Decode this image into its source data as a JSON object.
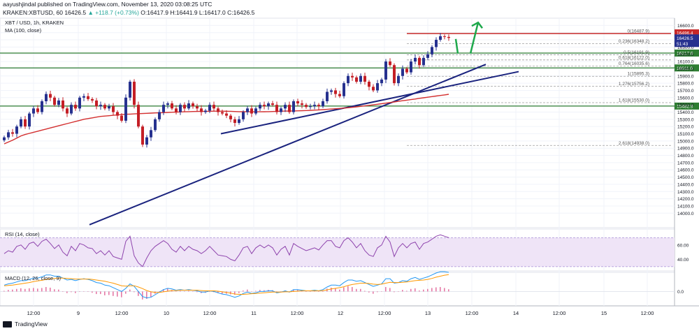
{
  "header": {
    "line1": "aayushjindal published on TradingView.com, November 13, 2020 03:08:25 UTC",
    "line2_prefix": "KRAKEN:XBTUSD, 60 16426.5",
    "line2_change": "▲ +118.7 (+0.73%)",
    "line2_ohlc": "O:16417.9 H:16441.9 L:16417.0 C:16426.5"
  },
  "legend": {
    "symbol": "XBT / USD, 1h, KRAKEN",
    "ma": "MA (100, close)",
    "rsi": "RSI (14, close)",
    "macd": "MACD (12, 26, close, 9)"
  },
  "brand": "TradingView",
  "price_badges": {
    "last": "16426.5",
    "countdown": "51:43",
    "top_level": "16496.4"
  },
  "levels": {
    "resistance": [
      "16217.0",
      "16011.0",
      "15482.9"
    ],
    "fib": [
      {
        "label": "0(16487.9)",
        "value": 16487.9
      },
      {
        "label": "0.236(16348.2)",
        "value": 16348.2
      },
      {
        "label": "0.5(16191.9)",
        "value": 16191.9
      },
      {
        "label": "0.618(16122.0)",
        "value": 16122.0
      },
      {
        "label": "0.764(16035.6)",
        "value": 16035.6
      },
      {
        "label": "1(15895.3)",
        "value": 15895.3
      },
      {
        "label": "1.276(15756.2)",
        "value": 15756.2
      },
      {
        "label": "1.618(15530.0)",
        "value": 15530.0
      },
      {
        "label": "2.618(14938.0)",
        "value": 14938.0
      }
    ]
  },
  "colors": {
    "bull": "#26318f",
    "bear": "#c41f26",
    "ma": "#d32f2f",
    "trendline": "#1a237e",
    "support": "#2e7d32",
    "fib_line": "#c62828",
    "fib_text": "#555555",
    "rsi_band": "#efe4f7",
    "rsi_line": "#8e44ad",
    "macd_line": "#2196f3",
    "signal_line": "#ff9800",
    "hist": "#e57aa6",
    "arrow": "#1ea84b"
  },
  "chart_data": {
    "type": "candlestick",
    "title": "XBT / USD, 1h, KRAKEN",
    "ylim": [
      13800,
      16700
    ],
    "y_ticks": [
      14000,
      14100,
      14200,
      14300,
      14400,
      14500,
      14600,
      14700,
      14800,
      14900,
      15000,
      15100,
      15200,
      15300,
      15400,
      15500,
      15600,
      15700,
      15800,
      15900,
      16000,
      16100,
      16200,
      16300,
      16400,
      16500,
      16600
    ],
    "y_tick_labels": [
      "14000.0",
      "14100.0",
      "14200.0",
      "14300.0",
      "14400.0",
      "14500.0",
      "14600.0",
      "14700.0",
      "14800.0",
      "14900.0",
      "15000.0",
      "15100.0",
      "15200.0",
      "15300.0",
      "15400.0",
      "15500.0",
      "15600.0",
      "15700.0",
      "15800.0",
      "15900.0",
      "16000.0",
      "16100.0",
      "16200.0",
      "16300.0",
      "16400.0",
      "16500.0",
      "16600.0"
    ],
    "x_ticks": [
      "12:00",
      "9",
      "12:00",
      "10",
      "12:00",
      "11",
      "12:00",
      "12",
      "12:00",
      "13",
      "12:00",
      "14",
      "12:00",
      "15",
      "12:00"
    ],
    "close": [
      15050,
      15120,
      15100,
      15200,
      15300,
      15200,
      15380,
      15450,
      15400,
      15550,
      15650,
      15600,
      15500,
      15560,
      15450,
      15380,
      15500,
      15450,
      15600,
      15620,
      15580,
      15560,
      15480,
      15500,
      15450,
      15480,
      15400,
      15350,
      15280,
      15600,
      15820,
      15500,
      15200,
      14950,
      15050,
      15150,
      15300,
      15400,
      15500,
      15520,
      15450,
      15400,
      15500,
      15450,
      15520,
      15480,
      15450,
      15400,
      15420,
      15500,
      15450,
      15400,
      15380,
      15350,
      15300,
      15250,
      15300,
      15400,
      15450,
      15380,
      15450,
      15500,
      15480,
      15520,
      15500,
      15400,
      15450,
      15500,
      15400,
      15550,
      15520,
      15500,
      15470,
      15480,
      15500,
      15480,
      15550,
      15680,
      15700,
      15650,
      15620,
      15800,
      15900,
      15880,
      15820,
      15900,
      15820,
      15750,
      15700,
      15800,
      15850,
      16100,
      16050,
      15800,
      15900,
      16000,
      15950,
      16100,
      16150,
      16050,
      16150,
      16200,
      16300,
      16400,
      16450,
      16440,
      16426.5
    ],
    "ma100": [
      14960,
      14985,
      15010,
      15040,
      15070,
      15090,
      15105,
      15120,
      15135,
      15150,
      15165,
      15180,
      15195,
      15210,
      15225,
      15240,
      15255,
      15270,
      15285,
      15300,
      15310,
      15320,
      15330,
      15340,
      15345,
      15350,
      15355,
      15360,
      15365,
      15370,
      15372,
      15375,
      15378,
      15380,
      15382,
      15385,
      15388,
      15390,
      15392,
      15395,
      15398,
      15400,
      15402,
      15404,
      15406,
      15408,
      15409,
      15410,
      15410,
      15411,
      15412,
      15412,
      15412,
      15411,
      15410,
      15408,
      15406,
      15405,
      15404,
      15404,
      15404,
      15404,
      15405,
      15406,
      15408,
      15410,
      15412,
      15413,
      15414,
      15415,
      15417,
      15419,
      15421,
      15424,
      15427,
      15430,
      15434,
      15438,
      15442,
      15446,
      15450,
      15455,
      15460,
      15466,
      15472,
      15479,
      15486,
      15493,
      15500,
      15508,
      15516,
      15524,
      15532,
      15540,
      15549,
      15557,
      15565,
      15573,
      15581,
      15590,
      15598,
      15606,
      15614,
      15622,
      15630,
      15638,
      15646
    ],
    "rsi": [
      48,
      52,
      50,
      58,
      60,
      54,
      62,
      64,
      58,
      65,
      68,
      62,
      55,
      60,
      50,
      45,
      58,
      52,
      62,
      60,
      56,
      55,
      48,
      52,
      46,
      52,
      44,
      42,
      40,
      65,
      72,
      45,
      35,
      30,
      42,
      52,
      58,
      62,
      66,
      62,
      54,
      50,
      58,
      52,
      58,
      54,
      52,
      48,
      52,
      58,
      52,
      46,
      45,
      44,
      40,
      38,
      46,
      56,
      58,
      48,
      56,
      60,
      56,
      60,
      56,
      46,
      54,
      58,
      46,
      62,
      58,
      55,
      52,
      54,
      56,
      53,
      60,
      66,
      66,
      58,
      56,
      66,
      70,
      64,
      56,
      62,
      52,
      46,
      44,
      56,
      60,
      72,
      64,
      44,
      56,
      62,
      56,
      62,
      64,
      54,
      62,
      64,
      68,
      72,
      74,
      72,
      70
    ],
    "rsi_ticks": [
      40,
      60
    ],
    "rsi_ylim": [
      24,
      82
    ],
    "macd_ticks": [
      0
    ],
    "macd_ylim": [
      -45,
      60
    ],
    "macd": [
      20,
      24,
      26,
      30,
      34,
      34,
      38,
      42,
      42,
      46,
      52,
      52,
      48,
      48,
      42,
      36,
      38,
      34,
      38,
      40,
      38,
      34,
      28,
      26,
      20,
      18,
      12,
      6,
      0,
      10,
      24,
      16,
      0,
      -16,
      -20,
      -18,
      -10,
      -2,
      6,
      10,
      8,
      4,
      6,
      4,
      6,
      4,
      2,
      -2,
      -2,
      2,
      0,
      -4,
      -8,
      -10,
      -14,
      -18,
      -14,
      -6,
      -2,
      -6,
      -4,
      0,
      0,
      2,
      2,
      -4,
      -2,
      2,
      -2,
      6,
      6,
      4,
      2,
      2,
      4,
      2,
      6,
      14,
      20,
      20,
      18,
      28,
      36,
      36,
      32,
      34,
      28,
      22,
      16,
      20,
      24,
      40,
      40,
      26,
      28,
      34,
      32,
      40,
      44,
      38,
      42,
      46,
      52,
      58,
      62,
      62,
      60
    ],
    "signal": [
      18,
      19,
      20,
      22,
      24,
      26,
      28,
      31,
      33,
      35,
      38,
      40,
      41,
      42,
      42,
      41,
      40,
      39,
      39,
      39,
      39,
      38,
      36,
      34,
      32,
      29,
      26,
      22,
      18,
      17,
      18,
      18,
      14,
      9,
      3,
      -1,
      -3,
      -3,
      -1,
      1,
      3,
      3,
      4,
      4,
      4,
      4,
      4,
      3,
      2,
      2,
      2,
      1,
      -1,
      -3,
      -5,
      -8,
      -9,
      -9,
      -8,
      -7,
      -6,
      -5,
      -4,
      -3,
      -2,
      -2,
      -2,
      -1,
      -1,
      0,
      1,
      2,
      2,
      2,
      2,
      2,
      3,
      5,
      8,
      10,
      12,
      15,
      19,
      22,
      24,
      26,
      26,
      25,
      23,
      22,
      23,
      26,
      29,
      28,
      28,
      29,
      30,
      32,
      34,
      35,
      36,
      38,
      41,
      45,
      48,
      51,
      53
    ]
  }
}
